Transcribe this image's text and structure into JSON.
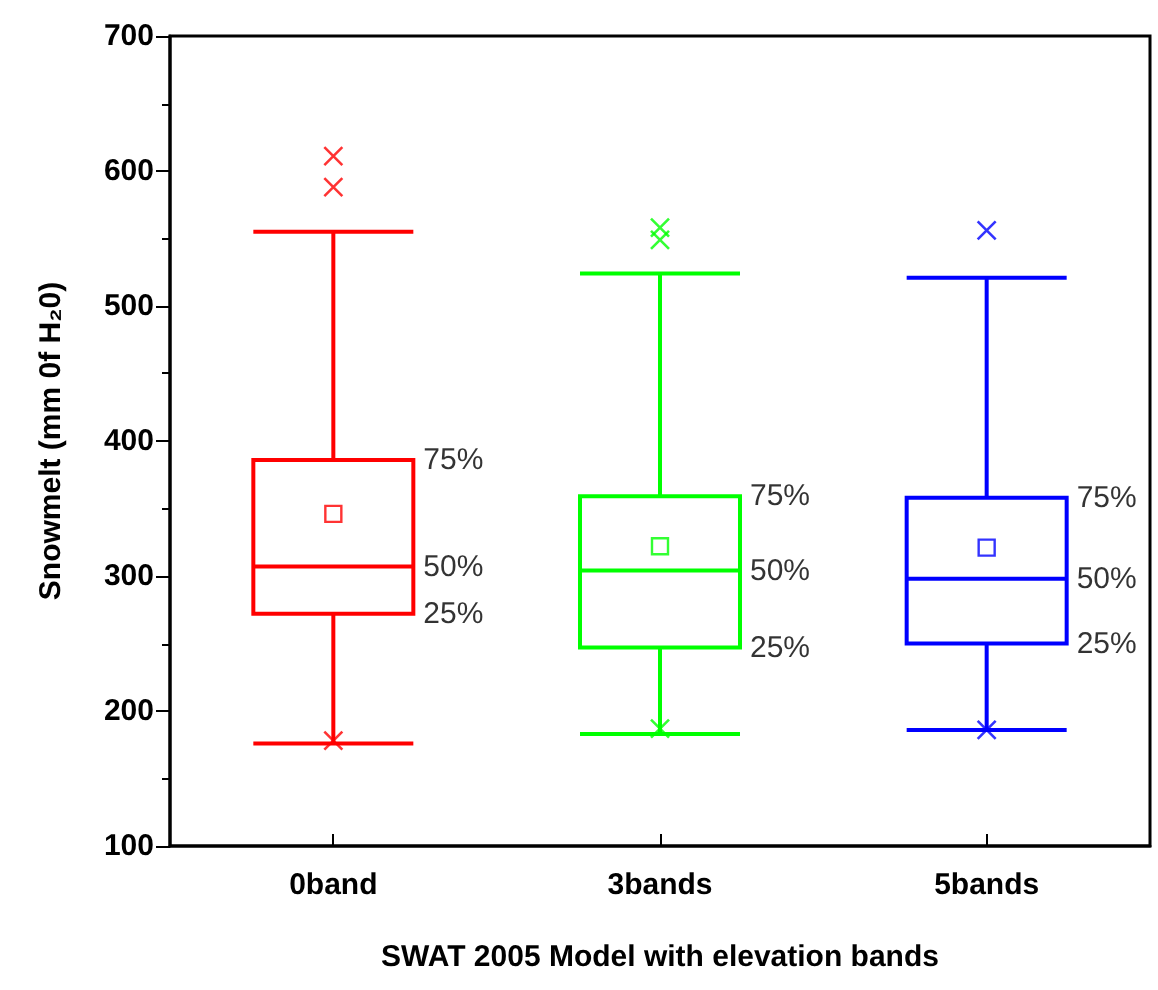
{
  "chart_data": {
    "type": "box",
    "xlabel": "SWAT 2005 Model with elevation bands",
    "ylabel": "Snowmelt (mm 0f H₂0)",
    "categories": [
      "0band",
      "3bands",
      "5bands"
    ],
    "colors": [
      "#ff0000",
      "#00ff00",
      "#0000ff"
    ],
    "boxes": [
      {
        "low": 176,
        "q1": 272,
        "median": 307,
        "q3": 386,
        "high": 555,
        "mean": 346,
        "outliers": [
          611,
          588,
          178
        ]
      },
      {
        "low": 183,
        "q1": 247,
        "median": 304,
        "q3": 359,
        "high": 524,
        "mean": 322,
        "outliers": [
          558,
          549,
          187
        ]
      },
      {
        "low": 186,
        "q1": 250,
        "median": 298,
        "q3": 358,
        "high": 521,
        "mean": 321,
        "outliers": [
          556,
          186
        ]
      }
    ],
    "ylim": [
      100,
      700
    ],
    "yticks": [
      100,
      200,
      300,
      400,
      500,
      600,
      700
    ],
    "grid": false,
    "annotations": [
      {
        "text": "75%",
        "x": "0band",
        "y": 386
      },
      {
        "text": "50%",
        "x": "0band",
        "y": 307
      },
      {
        "text": "25%",
        "x": "0band",
        "y": 272
      },
      {
        "text": "75%",
        "x": "3bands",
        "y": 359
      },
      {
        "text": "50%",
        "x": "3bands",
        "y": 304
      },
      {
        "text": "25%",
        "x": "3bands",
        "y": 247
      },
      {
        "text": "75%",
        "x": "5bands",
        "y": 358
      },
      {
        "text": "50%",
        "x": "5bands",
        "y": 298
      },
      {
        "text": "25%",
        "x": "5bands",
        "y": 250
      }
    ]
  }
}
